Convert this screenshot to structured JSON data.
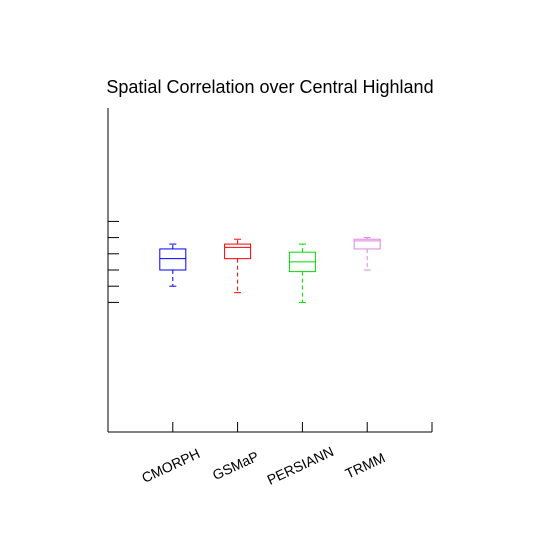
{
  "chart_data": {
    "type": "box",
    "title": "Spatial Correlation over Central Highland",
    "xlabel": "",
    "ylabel": "",
    "categories": [
      "CMORPH",
      "GSMaP",
      "PERSIANN",
      "TRMM"
    ],
    "colors": [
      "#0000ff",
      "#ff0000",
      "#00dd00",
      "#dd88dd"
    ],
    "ylim": [
      0,
      1
    ],
    "y_tick_values": [
      0.4,
      0.45,
      0.5,
      0.55,
      0.6,
      0.65
    ],
    "y_tick_labels_visible": false,
    "series": [
      {
        "category": "CMORPH",
        "whisker_low": 0.45,
        "q1": 0.5,
        "median": 0.535,
        "q3": 0.565,
        "whisker_high": 0.58
      },
      {
        "category": "GSMaP",
        "whisker_low": 0.43,
        "q1": 0.535,
        "median": 0.57,
        "q3": 0.58,
        "whisker_high": 0.595
      },
      {
        "category": "PERSIANN",
        "whisker_low": 0.4,
        "q1": 0.495,
        "median": 0.525,
        "q3": 0.555,
        "whisker_high": 0.58
      },
      {
        "category": "TRMM",
        "whisker_low": 0.5,
        "q1": 0.565,
        "median": 0.59,
        "q3": 0.595,
        "whisker_high": 0.6
      }
    ],
    "grid": false,
    "legend": "none"
  }
}
